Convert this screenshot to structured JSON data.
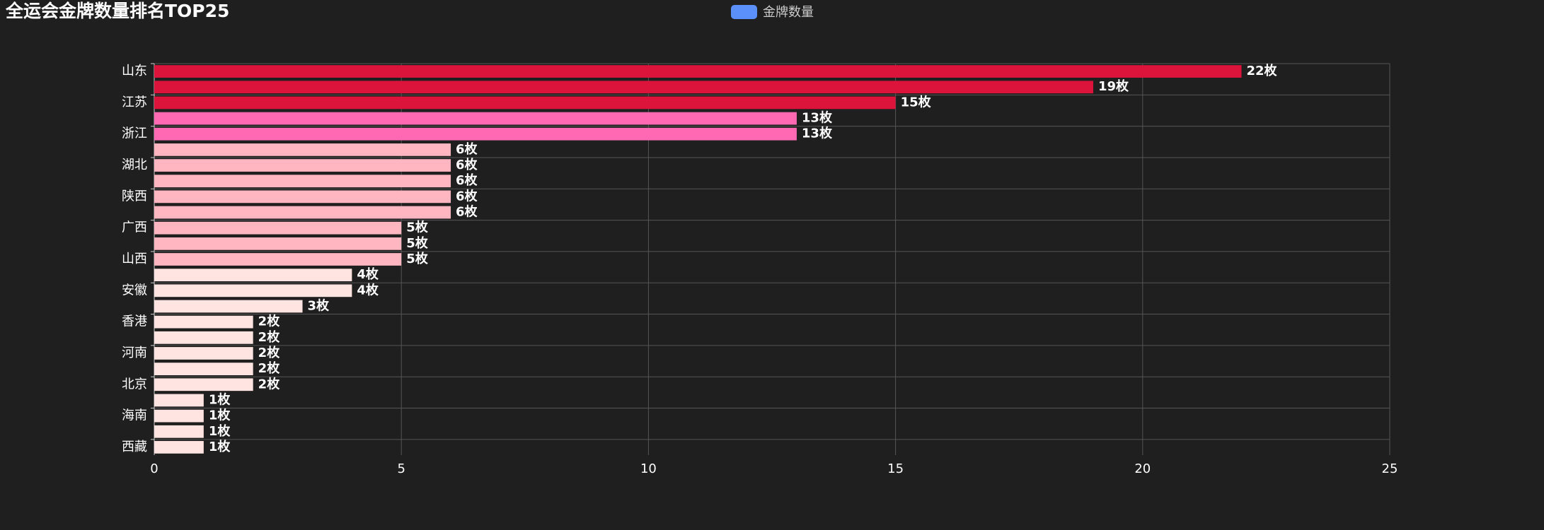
{
  "chart_data": {
    "type": "bar",
    "orientation": "horizontal",
    "title": "全运会金牌数量排名TOP25",
    "legend": {
      "position": "top-center"
    },
    "series": [
      {
        "name": "金牌数量",
        "color": "#5b8ff9",
        "values": [
          22,
          19,
          15,
          13,
          13,
          6,
          6,
          6,
          6,
          6,
          5,
          5,
          5,
          4,
          4,
          3,
          2,
          2,
          2,
          2,
          2,
          1,
          1,
          1,
          1
        ],
        "value_labels": [
          "22枚",
          "19枚",
          "15枚",
          "13枚",
          "13枚",
          "6枚",
          "6枚",
          "6枚",
          "6枚",
          "6枚",
          "5枚",
          "5枚",
          "5枚",
          "4枚",
          "4枚",
          "3枚",
          "2枚",
          "2枚",
          "2枚",
          "2枚",
          "2枚",
          "1枚",
          "1枚",
          "1枚",
          "1枚"
        ],
        "colors": [
          "#dc143c",
          "#dc143c",
          "#dc143c",
          "#ff69b4",
          "#ff69b4",
          "#ffb6c1",
          "#ffb6c1",
          "#ffb6c1",
          "#ffb6c1",
          "#ffb6c1",
          "#ffb6c1",
          "#ffb6c1",
          "#ffb6c1",
          "#ffe4e1",
          "#ffe4e1",
          "#ffe4e1",
          "#ffe4e1",
          "#ffe4e1",
          "#ffe4e1",
          "#ffe4e1",
          "#ffe4e1",
          "#ffe4e1",
          "#ffe4e1",
          "#ffe4e1",
          "#ffe4e1"
        ]
      }
    ],
    "categories": [
      "山东",
      null,
      "江苏",
      null,
      "浙江",
      null,
      "湖北",
      null,
      "陕西",
      null,
      "广西",
      null,
      "山西",
      null,
      "安徽",
      null,
      "香港",
      null,
      "河南",
      null,
      "北京",
      null,
      "海南",
      null,
      "西藏"
    ],
    "xlim": [
      0,
      25
    ],
    "xticks": [
      0,
      5,
      10,
      15,
      20,
      25
    ],
    "grid": true
  }
}
